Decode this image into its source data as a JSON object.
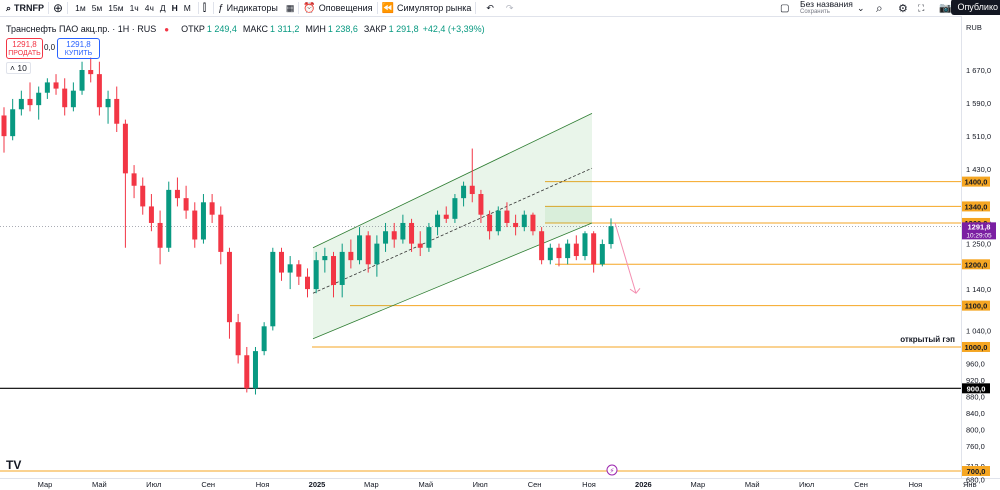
{
  "toolbar": {
    "symbol": "TRNFP",
    "intervals": [
      "1м",
      "5м",
      "15м",
      "1ч",
      "4ч",
      "Д",
      "Н",
      "М"
    ],
    "active_interval": "Н",
    "indicators_label": "Индикаторы",
    "alerts_label": "Оповещения",
    "replay_label": "Симулятор рынка",
    "layout_name": "Без названия",
    "layout_status": "Сохранить",
    "publish_label": "Опублико"
  },
  "legend": {
    "title": "Транснефть ПАО акц.пр. · 1Н · RUS",
    "open_label": "ОТКР",
    "open": "1 249,4",
    "high_label": "МАКС",
    "high": "1 311,2",
    "low_label": "МИН",
    "low": "1 238,6",
    "close_label": "ЗАКР",
    "close": "1 291,8",
    "change": "+42,4 (+3,39%)"
  },
  "trade": {
    "sell_price": "1291,8",
    "sell_label": "ПРОДАТЬ",
    "spread": "0,0",
    "buy_price": "1291,8",
    "buy_label": "КУПИТЬ"
  },
  "indicator_count": "10",
  "currency": "RUB",
  "colors": {
    "up": "#089981",
    "down": "#f23645",
    "level": "#f5a623",
    "channel": "#4caf50"
  },
  "chart_data": {
    "type": "candlestick",
    "ylim": [
      700,
      1750
    ],
    "x_labels": [
      {
        "pos": 0.5,
        "label": "Мар"
      },
      {
        "pos": 2.5,
        "label": "Май"
      },
      {
        "pos": 4.5,
        "label": "Июл"
      },
      {
        "pos": 6.5,
        "label": "Сен"
      },
      {
        "pos": 8.5,
        "label": "Ноя"
      },
      {
        "pos": 10.5,
        "label": "2025"
      },
      {
        "pos": 12.5,
        "label": "Мар"
      },
      {
        "pos": 14.5,
        "label": "Май"
      },
      {
        "pos": 16.5,
        "label": "Июл"
      },
      {
        "pos": 18.5,
        "label": "Сен"
      },
      {
        "pos": 20.5,
        "label": "Ноя"
      },
      {
        "pos": 22.5,
        "label": "2026"
      },
      {
        "pos": 24.5,
        "label": "Мар"
      },
      {
        "pos": 26.5,
        "label": "Май"
      },
      {
        "pos": 28.5,
        "label": "Июл"
      },
      {
        "pos": 30.5,
        "label": "Сен"
      },
      {
        "pos": 32.5,
        "label": "Ноя"
      },
      {
        "pos": 34.5,
        "label": "Янв"
      }
    ],
    "price_ticks": [
      1670,
      1590,
      1510,
      1430,
      1300,
      1250,
      1140,
      1040,
      960,
      920,
      880,
      840,
      800,
      760,
      712,
      680
    ],
    "levels": [
      {
        "value": 1400,
        "label": "1400,0"
      },
      {
        "value": 1340,
        "label": "1340,0"
      },
      {
        "value": 1300,
        "label": "1300,0"
      },
      {
        "value": 1200,
        "label": "1200,0"
      },
      {
        "value": 1100,
        "label": "1100,0"
      },
      {
        "value": 1000,
        "label": "1000,0"
      },
      {
        "value": 900,
        "label": "900,0"
      },
      {
        "value": 700,
        "label": "700,0"
      }
    ],
    "gap_annotation": "открытый гэп",
    "last_price": "1291,8",
    "countdown": "10:29:05",
    "candles": [
      {
        "o": 1560,
        "h": 1580,
        "l": 1470,
        "c": 1510
      },
      {
        "o": 1510,
        "h": 1600,
        "l": 1500,
        "c": 1575
      },
      {
        "o": 1575,
        "h": 1620,
        "l": 1560,
        "c": 1600
      },
      {
        "o": 1600,
        "h": 1640,
        "l": 1570,
        "c": 1585
      },
      {
        "o": 1585,
        "h": 1630,
        "l": 1550,
        "c": 1615
      },
      {
        "o": 1615,
        "h": 1650,
        "l": 1600,
        "c": 1640
      },
      {
        "o": 1640,
        "h": 1660,
        "l": 1610,
        "c": 1625
      },
      {
        "o": 1625,
        "h": 1650,
        "l": 1560,
        "c": 1580
      },
      {
        "o": 1580,
        "h": 1640,
        "l": 1570,
        "c": 1620
      },
      {
        "o": 1620,
        "h": 1690,
        "l": 1610,
        "c": 1670
      },
      {
        "o": 1670,
        "h": 1700,
        "l": 1640,
        "c": 1660
      },
      {
        "o": 1660,
        "h": 1690,
        "l": 1560,
        "c": 1580
      },
      {
        "o": 1580,
        "h": 1620,
        "l": 1540,
        "c": 1600
      },
      {
        "o": 1600,
        "h": 1630,
        "l": 1520,
        "c": 1540
      },
      {
        "o": 1540,
        "h": 1550,
        "l": 1240,
        "c": 1420
      },
      {
        "o": 1420,
        "h": 1440,
        "l": 1360,
        "c": 1390
      },
      {
        "o": 1390,
        "h": 1410,
        "l": 1320,
        "c": 1340
      },
      {
        "o": 1340,
        "h": 1370,
        "l": 1280,
        "c": 1300
      },
      {
        "o": 1300,
        "h": 1330,
        "l": 1200,
        "c": 1240
      },
      {
        "o": 1240,
        "h": 1400,
        "l": 1230,
        "c": 1380
      },
      {
        "o": 1380,
        "h": 1410,
        "l": 1340,
        "c": 1360
      },
      {
        "o": 1360,
        "h": 1390,
        "l": 1310,
        "c": 1330
      },
      {
        "o": 1330,
        "h": 1350,
        "l": 1240,
        "c": 1260
      },
      {
        "o": 1260,
        "h": 1370,
        "l": 1250,
        "c": 1350
      },
      {
        "o": 1350,
        "h": 1370,
        "l": 1300,
        "c": 1320
      },
      {
        "o": 1320,
        "h": 1340,
        "l": 1200,
        "c": 1230
      },
      {
        "o": 1230,
        "h": 1240,
        "l": 1020,
        "c": 1060
      },
      {
        "o": 1060,
        "h": 1080,
        "l": 960,
        "c": 980
      },
      {
        "o": 980,
        "h": 1000,
        "l": 890,
        "c": 900
      },
      {
        "o": 900,
        "h": 1000,
        "l": 885,
        "c": 990
      },
      {
        "o": 990,
        "h": 1060,
        "l": 980,
        "c": 1050
      },
      {
        "o": 1050,
        "h": 1240,
        "l": 1040,
        "c": 1230
      },
      {
        "o": 1230,
        "h": 1240,
        "l": 1160,
        "c": 1180
      },
      {
        "o": 1180,
        "h": 1220,
        "l": 1140,
        "c": 1200
      },
      {
        "o": 1200,
        "h": 1210,
        "l": 1150,
        "c": 1170
      },
      {
        "o": 1170,
        "h": 1190,
        "l": 1120,
        "c": 1140
      },
      {
        "o": 1140,
        "h": 1230,
        "l": 1130,
        "c": 1210
      },
      {
        "o": 1210,
        "h": 1240,
        "l": 1180,
        "c": 1220
      },
      {
        "o": 1220,
        "h": 1230,
        "l": 1120,
        "c": 1150
      },
      {
        "o": 1150,
        "h": 1250,
        "l": 1120,
        "c": 1230
      },
      {
        "o": 1230,
        "h": 1260,
        "l": 1190,
        "c": 1210
      },
      {
        "o": 1210,
        "h": 1290,
        "l": 1200,
        "c": 1270
      },
      {
        "o": 1270,
        "h": 1280,
        "l": 1180,
        "c": 1200
      },
      {
        "o": 1200,
        "h": 1270,
        "l": 1170,
        "c": 1250
      },
      {
        "o": 1250,
        "h": 1300,
        "l": 1230,
        "c": 1280
      },
      {
        "o": 1280,
        "h": 1300,
        "l": 1240,
        "c": 1260
      },
      {
        "o": 1260,
        "h": 1320,
        "l": 1250,
        "c": 1300
      },
      {
        "o": 1300,
        "h": 1310,
        "l": 1230,
        "c": 1250
      },
      {
        "o": 1250,
        "h": 1280,
        "l": 1220,
        "c": 1240
      },
      {
        "o": 1240,
        "h": 1300,
        "l": 1230,
        "c": 1290
      },
      {
        "o": 1290,
        "h": 1330,
        "l": 1270,
        "c": 1320
      },
      {
        "o": 1320,
        "h": 1340,
        "l": 1300,
        "c": 1310
      },
      {
        "o": 1310,
        "h": 1370,
        "l": 1300,
        "c": 1360
      },
      {
        "o": 1360,
        "h": 1400,
        "l": 1340,
        "c": 1390
      },
      {
        "o": 1390,
        "h": 1480,
        "l": 1350,
        "c": 1370
      },
      {
        "o": 1370,
        "h": 1380,
        "l": 1300,
        "c": 1320
      },
      {
        "o": 1320,
        "h": 1330,
        "l": 1260,
        "c": 1280
      },
      {
        "o": 1280,
        "h": 1340,
        "l": 1270,
        "c": 1330
      },
      {
        "o": 1330,
        "h": 1350,
        "l": 1290,
        "c": 1300
      },
      {
        "o": 1300,
        "h": 1320,
        "l": 1270,
        "c": 1290
      },
      {
        "o": 1290,
        "h": 1330,
        "l": 1280,
        "c": 1320
      },
      {
        "o": 1320,
        "h": 1325,
        "l": 1270,
        "c": 1280
      },
      {
        "o": 1280,
        "h": 1290,
        "l": 1200,
        "c": 1210
      },
      {
        "o": 1210,
        "h": 1250,
        "l": 1200,
        "c": 1240
      },
      {
        "o": 1240,
        "h": 1250,
        "l": 1195,
        "c": 1215
      },
      {
        "o": 1215,
        "h": 1260,
        "l": 1200,
        "c": 1250
      },
      {
        "o": 1250,
        "h": 1270,
        "l": 1210,
        "c": 1220
      },
      {
        "o": 1220,
        "h": 1280,
        "l": 1210,
        "c": 1275
      },
      {
        "o": 1275,
        "h": 1280,
        "l": 1180,
        "c": 1200
      },
      {
        "o": 1200,
        "h": 1260,
        "l": 1195,
        "c": 1249
      },
      {
        "o": 1249,
        "h": 1311,
        "l": 1238,
        "c": 1292
      }
    ]
  }
}
